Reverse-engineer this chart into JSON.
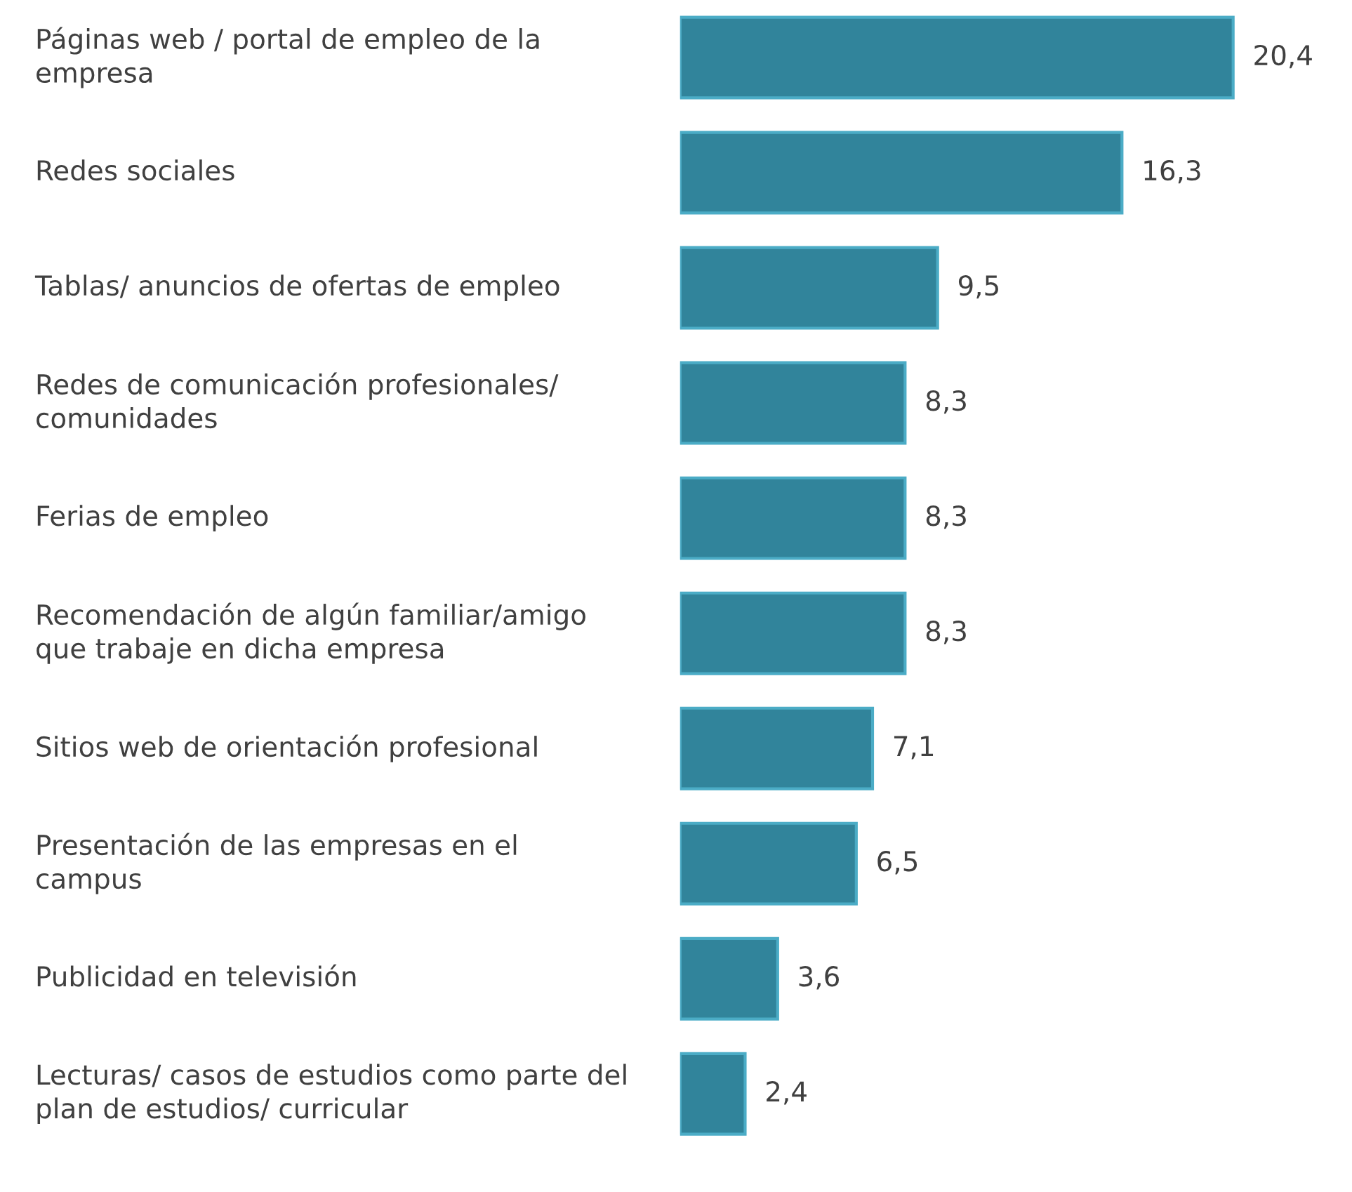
{
  "chart_data": {
    "type": "bar",
    "orientation": "horizontal",
    "categories": [
      "Páginas web / portal de empleo de la empresa",
      "Redes sociales",
      "Tablas/ anuncios de ofertas de empleo",
      "Redes de comunicación profesionales/ comunidades",
      "Ferias de empleo",
      "Recomendación de algún familiar/amigo que trabaje en dicha empresa",
      "Sitios web de orientación profesional",
      "Presentación de las empresas en el campus",
      "Publicidad en televisión",
      "Lecturas/ casos de estudios como parte del plan de estudios/ curricular"
    ],
    "values": [
      20.4,
      16.3,
      9.5,
      8.3,
      8.3,
      8.3,
      7.1,
      6.5,
      3.6,
      2.4
    ],
    "value_labels": [
      "20,4",
      "16,3",
      "9,5",
      "8,3",
      "8,3",
      "8,3",
      "7,1",
      "6,5",
      "3,6",
      "2,4"
    ],
    "color": "#31849b"
  }
}
